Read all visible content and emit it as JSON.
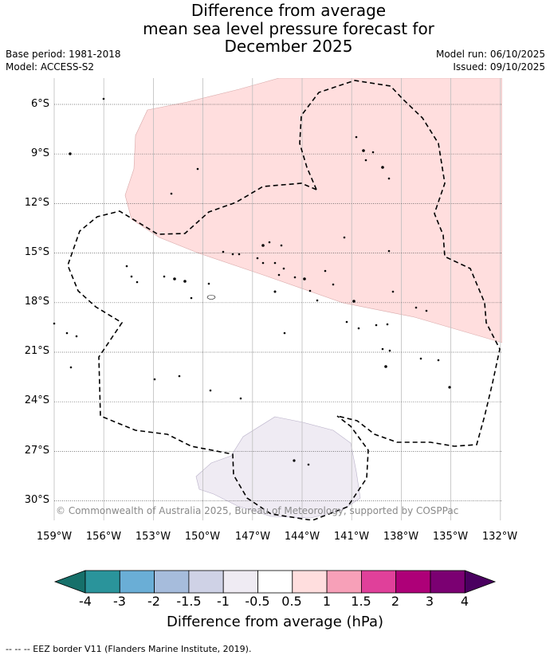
{
  "title": {
    "line1": "Difference from average",
    "line2": "mean sea level pressure forecast for",
    "line3": "December 2025"
  },
  "meta": {
    "base_period": "Base period: 1981-2018",
    "model": "Model: ACCESS-S2",
    "model_run": "Model run: 06/10/2025",
    "issued": "Issued: 09/10/2025"
  },
  "map": {
    "lat_labels": [
      "6°S",
      "9°S",
      "12°S",
      "15°S",
      "18°S",
      "21°S",
      "24°S",
      "27°S",
      "30°S"
    ],
    "lon_labels": [
      "159°W",
      "156°W",
      "153°W",
      "150°W",
      "147°W",
      "144°W",
      "141°W",
      "138°W",
      "135°W",
      "132°W"
    ],
    "copyright": "© Commonwealth of Australia 2025, Bureau of Meteorology, supported by COSPPac"
  },
  "colorbar": {
    "ticks": [
      "-4",
      "-3",
      "-2",
      "-1.5",
      "-1",
      "-0.5",
      "0.5",
      "1",
      "1.5",
      "2",
      "3",
      "4"
    ],
    "colors": [
      "#16706a",
      "#2a949b",
      "#6aaed6",
      "#a6bcdc",
      "#cfd2e6",
      "#efebf3",
      "#ffffff",
      "#ffdede",
      "#f7a0b8",
      "#e0409a",
      "#ae0078",
      "#7b0072",
      "#4a0060"
    ],
    "label": "Difference from average (hPa)"
  },
  "legend": {
    "eez": "-- -- -- EEZ border V11 (Flanders Marine Institute, 2019)."
  }
}
